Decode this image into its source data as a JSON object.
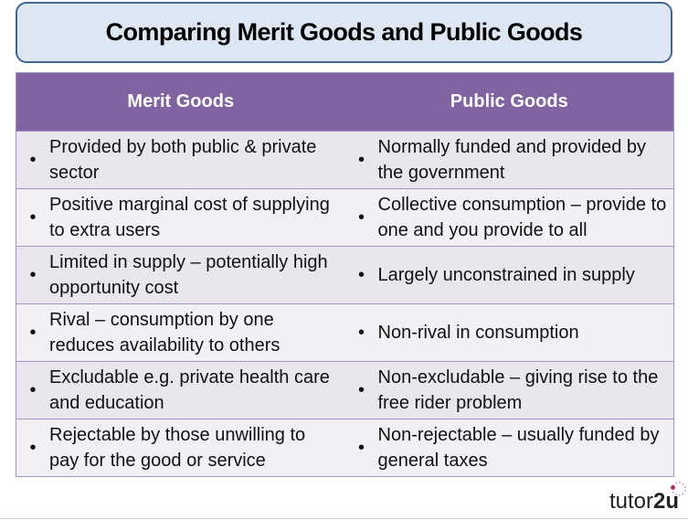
{
  "title": "Comparing Merit Goods and Public Goods",
  "table": {
    "headers": [
      "Merit Goods",
      "Public Goods"
    ],
    "bullet": "•",
    "rows": [
      [
        "Provided by both public & private sector",
        "Normally funded and provided by the government"
      ],
      [
        "Positive marginal cost of supplying to extra users",
        "Collective consumption – provide to one and you provide to all"
      ],
      [
        "Limited in supply – potentially high opportunity cost",
        "Largely unconstrained in supply"
      ],
      [
        "Rival – consumption by one reduces availability to others",
        "Non-rival in consumption"
      ],
      [
        "Excludable e.g. private health care and education",
        "Non-excludable – giving rise to the free rider problem"
      ],
      [
        "Rejectable by those unwilling to pay for the good or service",
        "Non-rejectable – usually funded by general taxes"
      ]
    ]
  },
  "logo": {
    "text_a": "tutor",
    "text_b": "2u"
  },
  "colors": {
    "header": "#8064a2",
    "title_fill": "#dde7f3",
    "title_border": "#43658f"
  }
}
